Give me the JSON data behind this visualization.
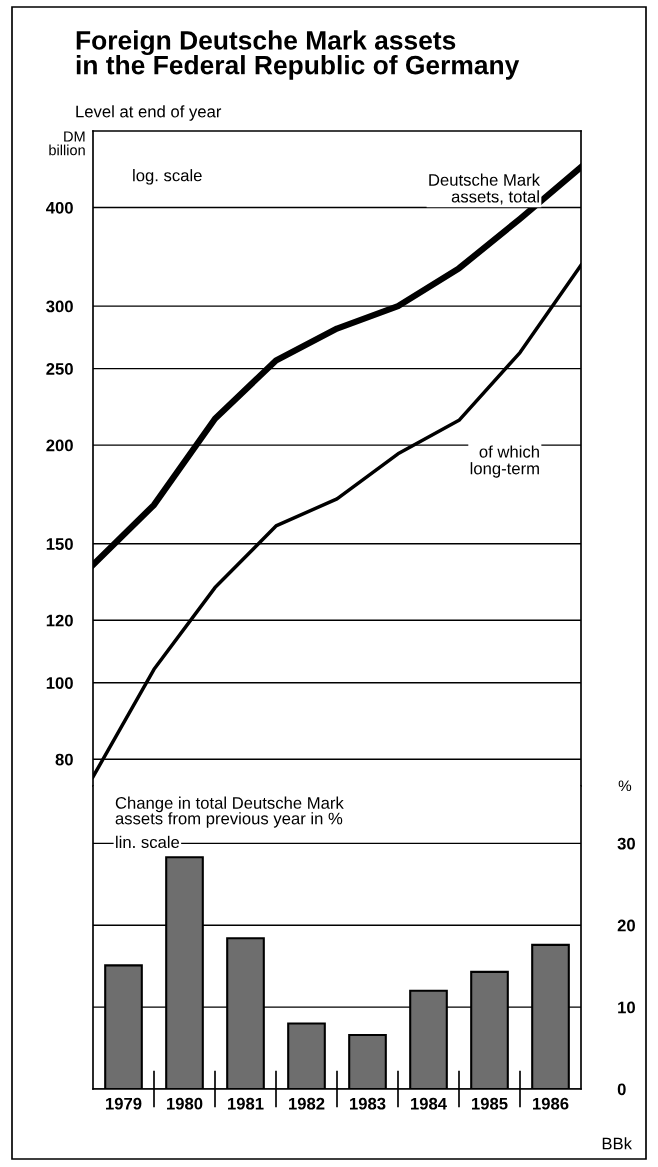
{
  "chart_data": [
    {
      "type": "line",
      "title": "Foreign Deutsche Mark assets\nin the Federal Republic of Germany",
      "subtitle": "Level at end of year",
      "ylabel": "DM\nbillion",
      "categories": [
        null,
        null,
        null,
        null,
        null,
        null,
        null,
        null,
        null
      ],
      "series": [
        {
          "name": "Deutsche Mark\nassets, total",
          "color": "#000000",
          "values": [
            141,
            168,
            216,
            256,
            281,
            300,
            335,
            387,
            450
          ]
        },
        {
          "name": "of which\nlong-term",
          "color": "#000000",
          "values": [
            76,
            104,
            132,
            158,
            171,
            195,
            215,
            262,
            338
          ]
        }
      ],
      "log": true,
      "ylim": [
        74,
        500
      ],
      "yticks": [
        80,
        100,
        120,
        150,
        200,
        250,
        300,
        400
      ],
      "grid": "y",
      "tick_labels": "y",
      "marker": "none",
      "line_style": "solid",
      "annotations": [
        "log. scale"
      ]
    },
    {
      "type": "bar",
      "ylabel": "%",
      "categories": [
        "1979",
        "1980",
        "1981",
        "1982",
        "1983",
        "1984",
        "1985",
        "1986"
      ],
      "values": [
        15.1,
        28.3,
        18.4,
        8.0,
        6.6,
        12.0,
        14.3,
        17.6
      ],
      "color": "#6e6e6e",
      "ylim": [
        0,
        37
      ],
      "yticks": [
        0,
        10,
        20,
        30
      ],
      "grid": "y",
      "annotations": [
        "Change in total Deutsche Mark\nassets from previous year in %",
        "lin. scale",
        "BBk"
      ]
    }
  ]
}
